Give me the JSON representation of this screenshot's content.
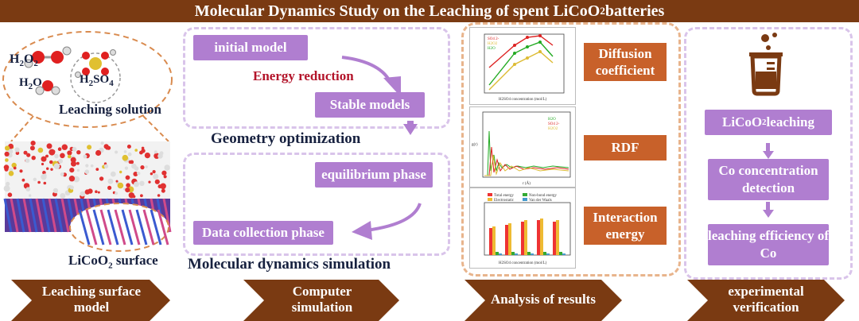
{
  "title": {
    "main": "Molecular Dynamics Study on the Leaching of spent LiCoO",
    "sub": "2",
    "tail": " batteries"
  },
  "left_panel": {
    "molecules": {
      "h2o2": {
        "main": "H",
        "sub1": "2",
        "mid": "O",
        "sub2": "2"
      },
      "h2so4": {
        "main": "H",
        "sub1": "2",
        "mid": "SO",
        "sub2": "4"
      },
      "h2o": {
        "main": "H",
        "sub1": "2",
        "mid": "O"
      }
    },
    "leaching_solution": "Leaching solution",
    "surface": {
      "main": "LiCoO",
      "sub": "2",
      "tail": " surface"
    }
  },
  "computer_panel": {
    "initial_model": "initial model",
    "energy_reduction": "Energy reduction",
    "stable_models": "Stable models",
    "geometry_optimization": "Geometry optimization",
    "equilibrium_phase": "equilibrium phase",
    "data_collection_phase": "Data collection phase",
    "md_simulation": "Molecular dynamics simulation"
  },
  "analysis_panel": {
    "diffusion": "Diffusion coefficient",
    "rdf": "RDF",
    "interaction": "Interaction energy",
    "chart1": {
      "legend": [
        "SO4 2-",
        "H2O2",
        "H2O"
      ],
      "xlabel": "H2SO4 concentration (mol/L)",
      "ylabel": "Diffusion coefficient"
    },
    "chart2": {
      "legend": [
        "H2O",
        "SO4 2-",
        "H2O2"
      ],
      "xlabel": "r (Å)",
      "ylabel": "g(r)"
    },
    "chart3": {
      "legend": [
        "Total energy",
        "Electrostatic",
        "Non-bond energy",
        "Van der Waals"
      ],
      "xlabel": "H2SO4 concentration (mol/L)",
      "ylabel": "E"
    }
  },
  "experiment_panel": {
    "leaching": {
      "main": "LiCoO",
      "sub": "2",
      "tail": " leaching"
    },
    "co_detection": "Co concentration detection",
    "efficiency": "leaching efficiency of Co"
  },
  "bottom": {
    "step1": "Leaching surface model",
    "step2": "Computer simulation",
    "step3": "Analysis of results",
    "step4": "experimental verification"
  },
  "colors": {
    "brown": "#7a3a12",
    "purple": "#b07ed0",
    "orange": "#c8612a",
    "navy": "#17213f",
    "red": "#b3142a"
  }
}
